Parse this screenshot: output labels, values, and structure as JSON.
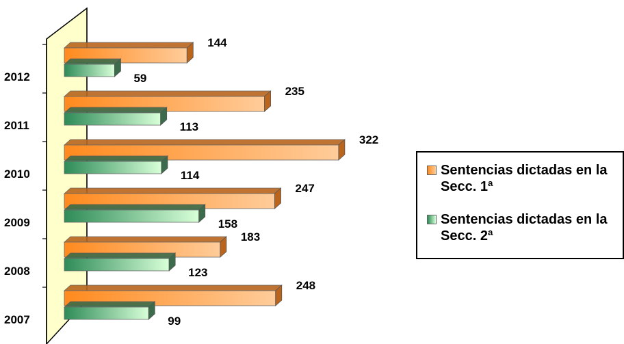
{
  "chart_data": {
    "type": "bar",
    "orientation": "horizontal",
    "categories": [
      "2007",
      "2008",
      "2009",
      "2010",
      "2011",
      "2012"
    ],
    "series": [
      {
        "name": "Sentencias dictadas en la Secc. 1ª",
        "values": [
          248,
          183,
          247,
          322,
          235,
          144
        ],
        "color": "#ff9a3c"
      },
      {
        "name": "Sentencias dictadas en la Secc. 2ª",
        "values": [
          99,
          123,
          158,
          114,
          113,
          59
        ],
        "color": "#3aa36a"
      }
    ],
    "value_labels": {
      "s1": [
        "248",
        "183",
        "247",
        "322",
        "235",
        "144"
      ],
      "s2": [
        "99",
        "123",
        "158",
        "114",
        "113",
        "59"
      ]
    },
    "xlim": [
      0,
      340
    ],
    "grid": false,
    "legend_position": "right",
    "wall_color": "#ffffcc"
  },
  "legend": {
    "item1": "Sentencias dictadas en la Secc. 1ª",
    "item2": "Sentencias dictadas en la Secc. 2ª"
  }
}
